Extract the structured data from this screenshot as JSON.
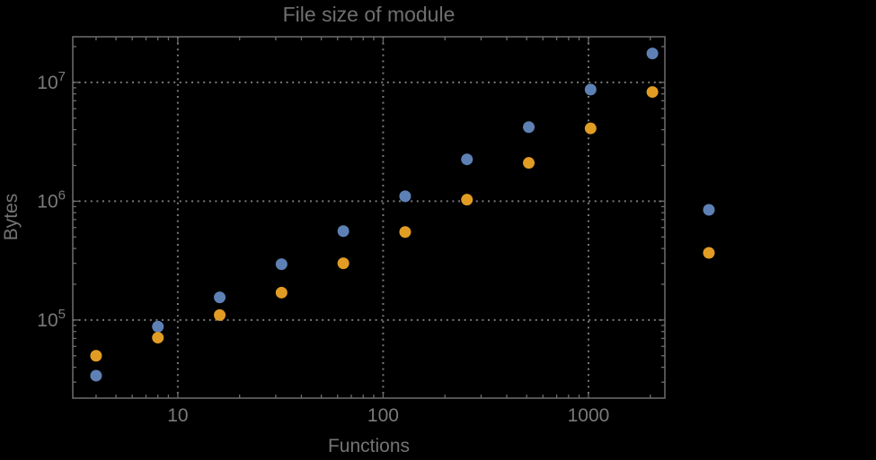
{
  "window": {
    "background_color": "#000000"
  },
  "chart_data": {
    "type": "scatter",
    "title": "File size of module",
    "xlabel": "Functions",
    "ylabel": "Bytes",
    "x_scale": "log",
    "y_scale": "log",
    "x_range": [
      3.08,
      2355
    ],
    "y_range": [
      22000,
      24200000
    ],
    "grid": "dotted at major ticks only",
    "frame": true,
    "x_ticks": {
      "major": [
        {
          "v": 10,
          "label": "10"
        },
        {
          "v": 100,
          "label": "100"
        },
        {
          "v": 1000,
          "label": "1000"
        }
      ],
      "minor": [
        4,
        5,
        6,
        7,
        8,
        9,
        20,
        30,
        40,
        50,
        60,
        70,
        80,
        90,
        200,
        300,
        400,
        500,
        600,
        700,
        800,
        900,
        2000
      ]
    },
    "y_ticks": {
      "major": [
        {
          "v": 100000,
          "base": "10",
          "exp": "5"
        },
        {
          "v": 1000000,
          "base": "10",
          "exp": "6"
        },
        {
          "v": 10000000,
          "base": "10",
          "exp": "7"
        }
      ],
      "minor": [
        30000,
        40000,
        50000,
        60000,
        70000,
        80000,
        90000,
        200000,
        300000,
        400000,
        500000,
        600000,
        700000,
        800000,
        900000,
        2000000,
        3000000,
        4000000,
        5000000,
        6000000,
        7000000,
        8000000,
        9000000,
        20000000
      ]
    },
    "series": [
      {
        "name": "series-1-blue",
        "color": "#5E81B5",
        "x": [
          4,
          8,
          16,
          32,
          64,
          128,
          256,
          512,
          1024,
          2048
        ],
        "y": [
          34000,
          88000,
          155000,
          295000,
          560000,
          1100000,
          2250000,
          4200000,
          8700000,
          17500000
        ]
      },
      {
        "name": "series-2-orange",
        "color": "#E19C24",
        "x": [
          4,
          8,
          16,
          32,
          64,
          128,
          256,
          512,
          1024,
          2048
        ],
        "y": [
          50000,
          71000,
          110000,
          170000,
          300000,
          550000,
          1030000,
          2100000,
          4100000,
          8300000
        ]
      }
    ],
    "legend": {
      "position": "outside-right",
      "labels_visible": false,
      "markers": [
        {
          "series": 0,
          "color": "#5E81B5"
        },
        {
          "series": 1,
          "color": "#E19C24"
        }
      ]
    },
    "marker_diameter_px": 13
  },
  "styles": {
    "frame_color": "#6d6d6d",
    "tick_color": "#6d6d6d",
    "grid_color": "#787878",
    "tick_label_color": "#7a7a7a",
    "title_color": "#6f6f6f",
    "axis_label_color": "#747474"
  }
}
